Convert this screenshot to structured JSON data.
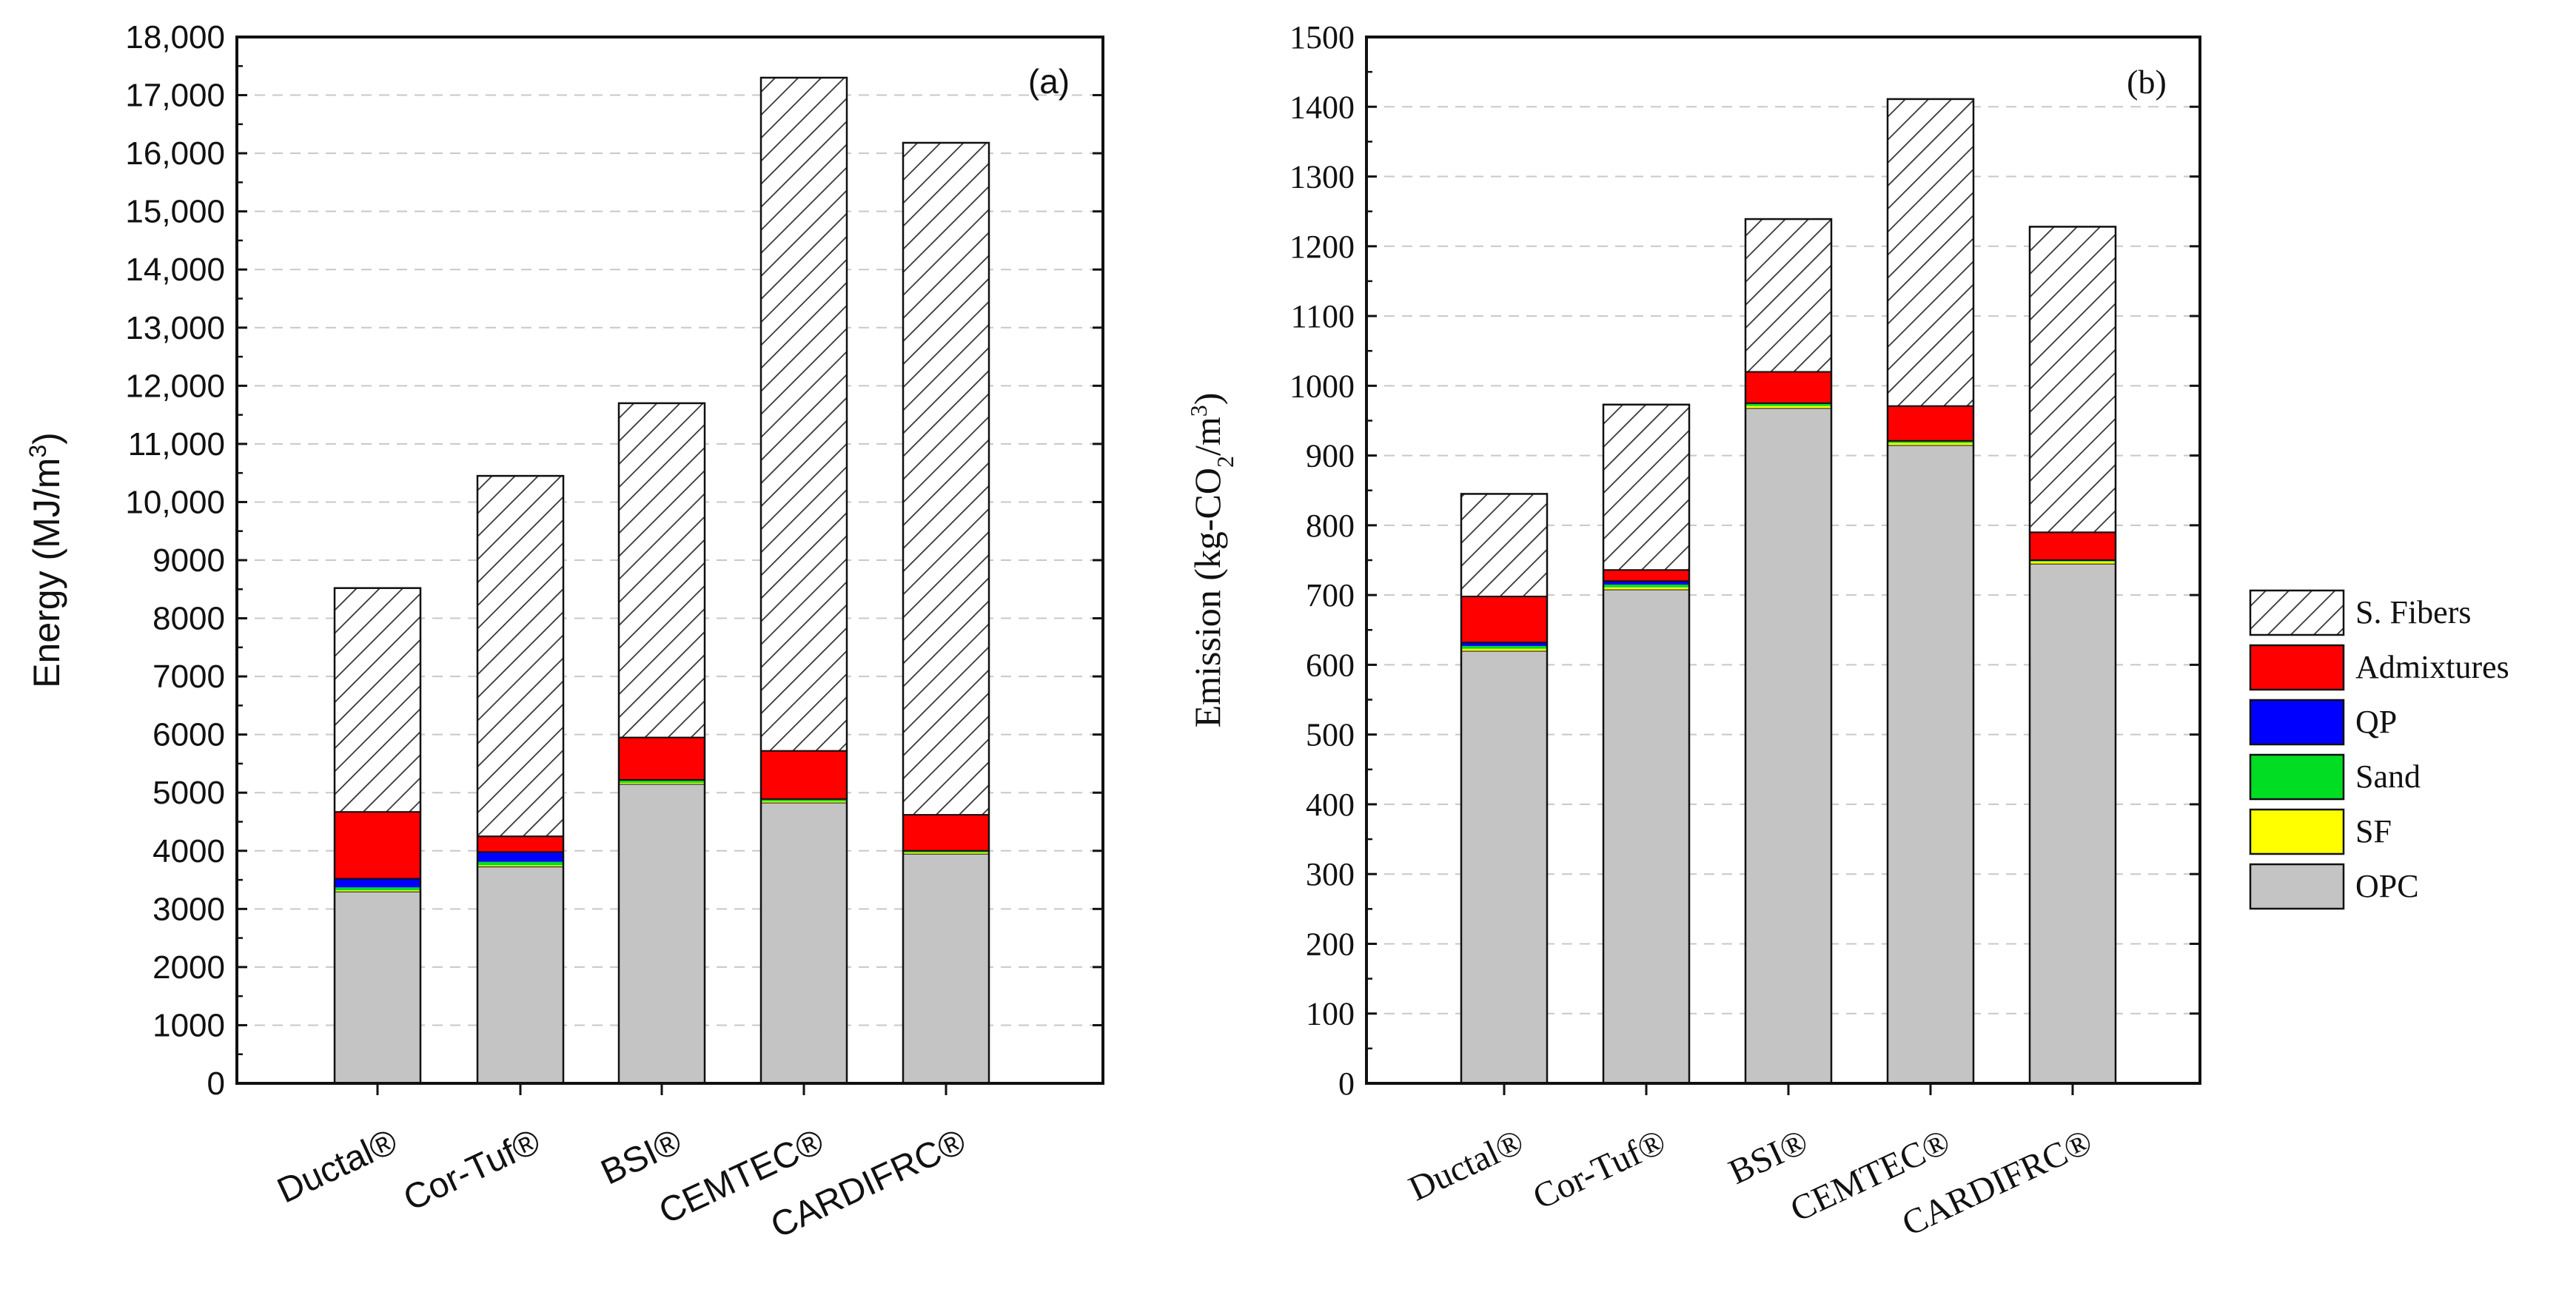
{
  "chart_data": [
    {
      "type": "bar",
      "stacked": true,
      "panel_label": "(a)",
      "title": "",
      "xlabel": "",
      "ylabel_main": "Energy (MJ/m",
      "ylabel_sup": "3",
      "ylabel_end": ")",
      "ylim": [
        0,
        18000
      ],
      "yticks": [
        0,
        1000,
        2000,
        3000,
        4000,
        5000,
        6000,
        7000,
        8000,
        9000,
        10000,
        11000,
        12000,
        13000,
        14000,
        15000,
        16000,
        17000,
        18000
      ],
      "ytick_labels": [
        "0",
        "1000",
        "2000",
        "3000",
        "4000",
        "5000",
        "6000",
        "7000",
        "8000",
        "9000",
        "10,000",
        "11,000",
        "12,000",
        "13,000",
        "14,000",
        "15,000",
        "16,000",
        "17,000",
        "18,000"
      ],
      "grid": true,
      "categories": [
        "Ductal®",
        "Cor-Tuf®",
        "BSI®",
        "CEMTEC®",
        "CARDIFRC®"
      ],
      "series": [
        {
          "name": "OPC",
          "values": [
            3300,
            3730,
            5150,
            4830,
            3950
          ]
        },
        {
          "name": "SF",
          "values": [
            20,
            20,
            20,
            20,
            20
          ]
        },
        {
          "name": "Sand",
          "values": [
            50,
            60,
            50,
            40,
            30
          ]
        },
        {
          "name": "QP",
          "values": [
            150,
            170,
            0,
            0,
            0
          ]
        },
        {
          "name": "Admixtures",
          "values": [
            1150,
            270,
            730,
            830,
            620
          ]
        },
        {
          "name": "S. Fibers",
          "values": [
            3850,
            6200,
            5750,
            11580,
            11560
          ]
        }
      ]
    },
    {
      "type": "bar",
      "stacked": true,
      "panel_label": "(b)",
      "title": "",
      "xlabel": "",
      "ylabel_main": "Emission (kg-CO",
      "ylabel_sub": "2",
      "ylabel_mid": "/m",
      "ylabel_sup": "3",
      "ylabel_end": ")",
      "ylim": [
        0,
        1500
      ],
      "yticks": [
        0,
        100,
        200,
        300,
        400,
        500,
        600,
        700,
        800,
        900,
        1000,
        1100,
        1200,
        1300,
        1400,
        1500
      ],
      "ytick_labels": [
        "0",
        "100",
        "200",
        "300",
        "400",
        "500",
        "600",
        "700",
        "800",
        "900",
        "1000",
        "1100",
        "1200",
        "1300",
        "1400",
        "1500"
      ],
      "grid": true,
      "categories": [
        "Ductal®",
        "Cor-Tuf®",
        "BSI®",
        "CEMTEC®",
        "CARDIFRC®"
      ],
      "series": [
        {
          "name": "OPC",
          "values": [
            620,
            708,
            968,
            915,
            745
          ]
        },
        {
          "name": "SF",
          "values": [
            3,
            3,
            3,
            3,
            3
          ]
        },
        {
          "name": "Sand",
          "values": [
            4,
            4,
            4,
            3,
            2
          ]
        },
        {
          "name": "QP",
          "values": [
            5,
            5,
            0,
            0,
            0
          ]
        },
        {
          "name": "Admixtures",
          "values": [
            66,
            16,
            45,
            50,
            40
          ]
        },
        {
          "name": "S. Fibers",
          "values": [
            147,
            237,
            219,
            440,
            438
          ]
        }
      ]
    }
  ],
  "legend": {
    "position": "right",
    "items": [
      {
        "name": "S. Fibers",
        "color": "#ffffff",
        "hatched": true
      },
      {
        "name": "Admixtures",
        "color": "#ff0000"
      },
      {
        "name": "QP",
        "color": "#0000ff"
      },
      {
        "name": "Sand",
        "color": "#00dd22"
      },
      {
        "name": "SF",
        "color": "#ffff00"
      },
      {
        "name": "OPC",
        "color": "#c4c4c4"
      }
    ]
  },
  "colors": {
    "OPC": "#c4c4c4",
    "SF": "#ffff00",
    "Sand": "#00dd22",
    "QP": "#0000ff",
    "Admixtures": "#ff0000",
    "S. Fibers": "#ffffff"
  }
}
